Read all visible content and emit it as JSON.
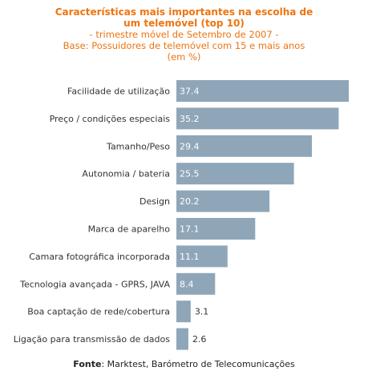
{
  "chart_data": {
    "type": "bar",
    "orientation": "horizontal",
    "title": "Características mais importantes na escolha de um telemóvel (top 10)",
    "subtitle_lines": [
      "- trimestre móvel de Setembro de 2007 -",
      "Base: Possuidores de telemóvel com 15 e mais anos",
      "(em %)"
    ],
    "categories": [
      "Facilidade de utilização",
      "Preço / condições especiais",
      "Tamanho/Peso",
      "Autonomia / bateria",
      "Design",
      "Marca de aparelho",
      "Camara fotográfica incorporada",
      "Tecnologia avançada - GPRS, JAVA",
      "Boa captação de rede/cobertura",
      "Ligação para transmissão de dados"
    ],
    "values": [
      37.4,
      35.2,
      29.4,
      25.5,
      20.2,
      17.1,
      11.1,
      8.4,
      3.1,
      2.6
    ],
    "value_labels": [
      "37.4",
      "35.2",
      "29.4",
      "25.5",
      "20.2",
      "17.1",
      "11.1",
      "8.4",
      "3.1",
      "2.6"
    ],
    "xlim": [
      0,
      40
    ],
    "grid": false,
    "legend": "none",
    "colors": {
      "bar": "#8fa6b9",
      "title": "#ee7410",
      "label_inside": "#ffffff",
      "label_outside": "#333333",
      "category_text": "#333333"
    }
  },
  "source": {
    "label": "Fonte",
    "text": ": Marktest, Barómetro de Telecomunicações"
  }
}
